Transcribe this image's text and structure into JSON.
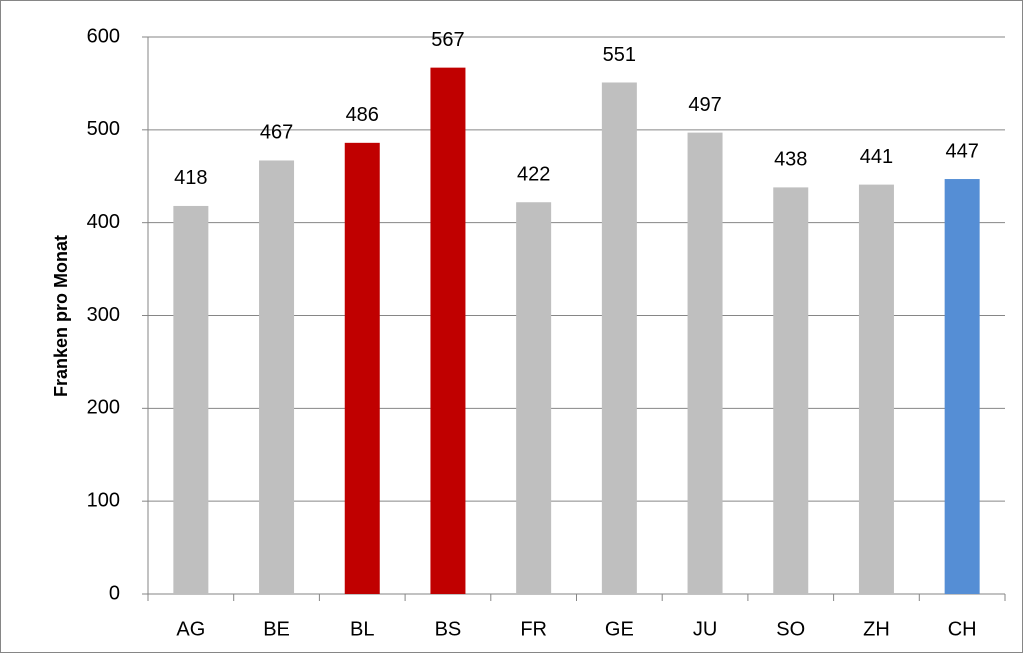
{
  "chart_data": {
    "type": "bar",
    "y_label": "Franken pro Monat",
    "categories": [
      "AG",
      "BE",
      "BL",
      "BS",
      "FR",
      "GE",
      "JU",
      "SO",
      "ZH",
      "CH"
    ],
    "values": [
      418,
      467,
      486,
      567,
      422,
      551,
      497,
      438,
      441,
      447
    ],
    "colors": [
      "#bfbfbf",
      "#bfbfbf",
      "#c00000",
      "#c00000",
      "#bfbfbf",
      "#bfbfbf",
      "#bfbfbf",
      "#bfbfbf",
      "#bfbfbf",
      "#558ed5"
    ],
    "ylim": [
      0,
      600
    ],
    "yticks": [
      0,
      100,
      200,
      300,
      400,
      500,
      600
    ],
    "grid": true
  }
}
